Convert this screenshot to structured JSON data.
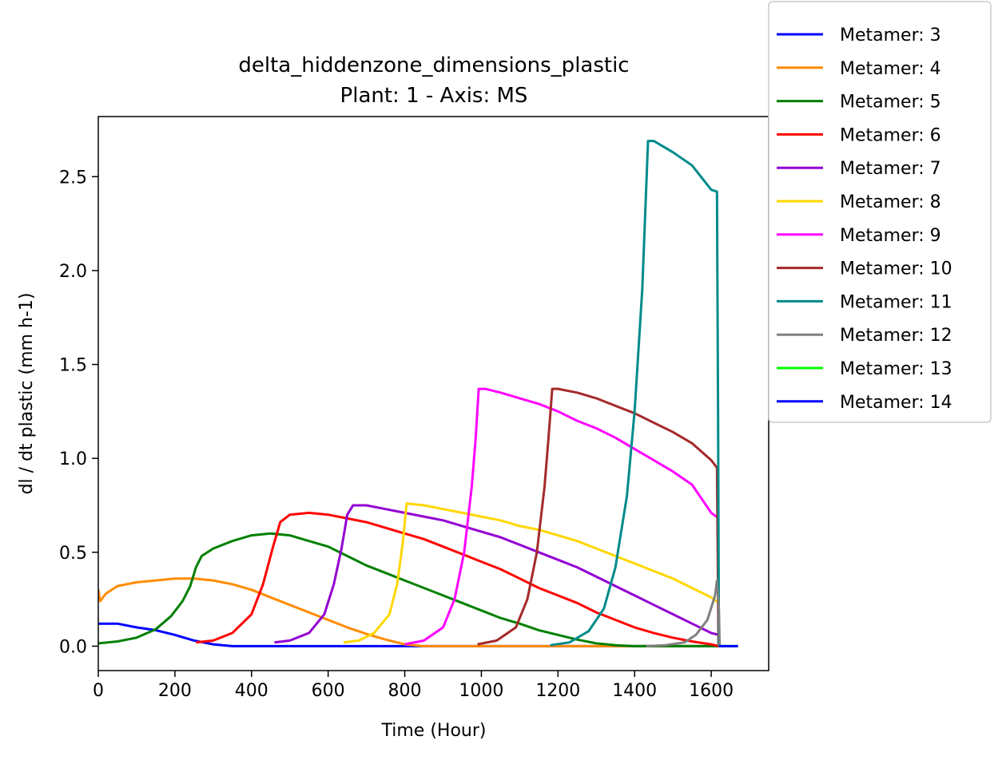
{
  "chart_data": {
    "type": "line",
    "title": "delta_hiddenzone_dimensions_plastic",
    "subtitle": "Plant: 1 - Axis: MS",
    "xlabel": "Time (Hour)",
    "ylabel": "dl / dt plastic (mm h-1)",
    "xlim": [
      0,
      1750
    ],
    "ylim": [
      -0.13,
      2.82
    ],
    "xticks": [
      0,
      200,
      400,
      600,
      800,
      1000,
      1200,
      1400,
      1600
    ],
    "xtick_labels": [
      "0",
      "200",
      "400",
      "600",
      "800",
      "1000",
      "1200",
      "1400",
      "1600"
    ],
    "yticks": [
      0.0,
      0.5,
      1.0,
      1.5,
      2.0,
      2.5
    ],
    "ytick_labels": [
      "0.0",
      "0.5",
      "1.0",
      "1.5",
      "2.0",
      "2.5"
    ],
    "grid": false,
    "legend_position": "outside-top-right",
    "series": [
      {
        "name": "Metamer: 3",
        "color": "#0000ff",
        "points": [
          [
            0,
            0.12
          ],
          [
            50,
            0.12
          ],
          [
            100,
            0.1
          ],
          [
            150,
            0.085
          ],
          [
            200,
            0.06
          ],
          [
            250,
            0.03
          ],
          [
            300,
            0.01
          ],
          [
            350,
            0.0
          ],
          [
            1620,
            0.0
          ]
        ]
      },
      {
        "name": "Metamer: 4",
        "color": "#ff8c00",
        "points": [
          [
            0,
            0.3
          ],
          [
            5,
            0.24
          ],
          [
            20,
            0.28
          ],
          [
            50,
            0.32
          ],
          [
            100,
            0.34
          ],
          [
            150,
            0.35
          ],
          [
            200,
            0.36
          ],
          [
            250,
            0.36
          ],
          [
            300,
            0.35
          ],
          [
            350,
            0.33
          ],
          [
            400,
            0.3
          ],
          [
            450,
            0.26
          ],
          [
            500,
            0.22
          ],
          [
            550,
            0.18
          ],
          [
            600,
            0.14
          ],
          [
            650,
            0.1
          ],
          [
            700,
            0.065
          ],
          [
            750,
            0.035
          ],
          [
            800,
            0.01
          ],
          [
            850,
            0.0
          ],
          [
            1620,
            0.0
          ]
        ]
      },
      {
        "name": "Metamer: 5",
        "color": "#008000",
        "points": [
          [
            0,
            0.015
          ],
          [
            50,
            0.025
          ],
          [
            100,
            0.045
          ],
          [
            150,
            0.09
          ],
          [
            190,
            0.16
          ],
          [
            220,
            0.24
          ],
          [
            240,
            0.32
          ],
          [
            255,
            0.42
          ],
          [
            270,
            0.48
          ],
          [
            300,
            0.52
          ],
          [
            350,
            0.56
          ],
          [
            400,
            0.59
          ],
          [
            450,
            0.6
          ],
          [
            500,
            0.59
          ],
          [
            550,
            0.56
          ],
          [
            600,
            0.53
          ],
          [
            650,
            0.48
          ],
          [
            700,
            0.43
          ],
          [
            750,
            0.39
          ],
          [
            800,
            0.35
          ],
          [
            850,
            0.31
          ],
          [
            900,
            0.27
          ],
          [
            950,
            0.23
          ],
          [
            1000,
            0.19
          ],
          [
            1050,
            0.15
          ],
          [
            1100,
            0.12
          ],
          [
            1150,
            0.085
          ],
          [
            1200,
            0.06
          ],
          [
            1250,
            0.035
          ],
          [
            1300,
            0.015
          ],
          [
            1350,
            0.005
          ],
          [
            1400,
            0.0
          ],
          [
            1620,
            0.0
          ]
        ]
      },
      {
        "name": "Metamer: 6",
        "color": "#ff0000",
        "points": [
          [
            255,
            0.02
          ],
          [
            300,
            0.03
          ],
          [
            350,
            0.07
          ],
          [
            400,
            0.17
          ],
          [
            430,
            0.33
          ],
          [
            455,
            0.52
          ],
          [
            475,
            0.66
          ],
          [
            500,
            0.7
          ],
          [
            550,
            0.71
          ],
          [
            600,
            0.7
          ],
          [
            650,
            0.68
          ],
          [
            700,
            0.66
          ],
          [
            750,
            0.63
          ],
          [
            800,
            0.6
          ],
          [
            850,
            0.57
          ],
          [
            900,
            0.53
          ],
          [
            950,
            0.49
          ],
          [
            1000,
            0.45
          ],
          [
            1050,
            0.41
          ],
          [
            1100,
            0.36
          ],
          [
            1150,
            0.31
          ],
          [
            1200,
            0.27
          ],
          [
            1250,
            0.23
          ],
          [
            1300,
            0.18
          ],
          [
            1350,
            0.14
          ],
          [
            1400,
            0.1
          ],
          [
            1450,
            0.07
          ],
          [
            1500,
            0.045
          ],
          [
            1550,
            0.025
          ],
          [
            1600,
            0.01
          ],
          [
            1620,
            0.0
          ]
        ]
      },
      {
        "name": "Metamer: 7",
        "color": "#9400d3",
        "points": [
          [
            460,
            0.02
          ],
          [
            500,
            0.03
          ],
          [
            550,
            0.07
          ],
          [
            590,
            0.17
          ],
          [
            615,
            0.33
          ],
          [
            635,
            0.52
          ],
          [
            650,
            0.7
          ],
          [
            665,
            0.75
          ],
          [
            700,
            0.75
          ],
          [
            750,
            0.73
          ],
          [
            800,
            0.71
          ],
          [
            850,
            0.69
          ],
          [
            900,
            0.67
          ],
          [
            950,
            0.64
          ],
          [
            1000,
            0.61
          ],
          [
            1050,
            0.58
          ],
          [
            1100,
            0.54
          ],
          [
            1150,
            0.5
          ],
          [
            1200,
            0.46
          ],
          [
            1250,
            0.42
          ],
          [
            1300,
            0.37
          ],
          [
            1350,
            0.32
          ],
          [
            1400,
            0.27
          ],
          [
            1450,
            0.22
          ],
          [
            1500,
            0.17
          ],
          [
            1550,
            0.12
          ],
          [
            1600,
            0.07
          ],
          [
            1620,
            0.06
          ]
        ]
      },
      {
        "name": "Metamer: 8",
        "color": "#ffd700",
        "points": [
          [
            640,
            0.02
          ],
          [
            680,
            0.03
          ],
          [
            720,
            0.07
          ],
          [
            760,
            0.17
          ],
          [
            780,
            0.33
          ],
          [
            795,
            0.55
          ],
          [
            805,
            0.76
          ],
          [
            850,
            0.75
          ],
          [
            900,
            0.73
          ],
          [
            950,
            0.71
          ],
          [
            1000,
            0.69
          ],
          [
            1050,
            0.67
          ],
          [
            1100,
            0.64
          ],
          [
            1150,
            0.62
          ],
          [
            1200,
            0.59
          ],
          [
            1250,
            0.56
          ],
          [
            1300,
            0.52
          ],
          [
            1350,
            0.48
          ],
          [
            1400,
            0.44
          ],
          [
            1450,
            0.4
          ],
          [
            1500,
            0.36
          ],
          [
            1550,
            0.31
          ],
          [
            1600,
            0.26
          ],
          [
            1620,
            0.23
          ]
        ]
      },
      {
        "name": "Metamer: 9",
        "color": "#ff00ff",
        "points": [
          [
            800,
            0.01
          ],
          [
            850,
            0.03
          ],
          [
            900,
            0.1
          ],
          [
            930,
            0.25
          ],
          [
            955,
            0.5
          ],
          [
            975,
            0.85
          ],
          [
            985,
            1.1
          ],
          [
            993,
            1.37
          ],
          [
            1010,
            1.37
          ],
          [
            1050,
            1.35
          ],
          [
            1100,
            1.32
          ],
          [
            1150,
            1.29
          ],
          [
            1200,
            1.25
          ],
          [
            1250,
            1.2
          ],
          [
            1300,
            1.16
          ],
          [
            1350,
            1.11
          ],
          [
            1400,
            1.05
          ],
          [
            1450,
            0.99
          ],
          [
            1500,
            0.93
          ],
          [
            1550,
            0.86
          ],
          [
            1600,
            0.71
          ],
          [
            1620,
            0.68
          ]
        ]
      },
      {
        "name": "Metamer: 10",
        "color": "#a52a2a",
        "points": [
          [
            990,
            0.01
          ],
          [
            1040,
            0.03
          ],
          [
            1090,
            0.1
          ],
          [
            1120,
            0.25
          ],
          [
            1145,
            0.5
          ],
          [
            1165,
            0.85
          ],
          [
            1175,
            1.1
          ],
          [
            1185,
            1.37
          ],
          [
            1200,
            1.37
          ],
          [
            1250,
            1.35
          ],
          [
            1300,
            1.32
          ],
          [
            1350,
            1.28
          ],
          [
            1400,
            1.24
          ],
          [
            1450,
            1.19
          ],
          [
            1500,
            1.14
          ],
          [
            1550,
            1.08
          ],
          [
            1600,
            0.99
          ],
          [
            1615,
            0.95
          ],
          [
            1617,
            0.5
          ],
          [
            1619,
            0.0
          ]
        ]
      },
      {
        "name": "Metamer: 11",
        "color": "#008b8b",
        "points": [
          [
            1180,
            0.005
          ],
          [
            1230,
            0.02
          ],
          [
            1280,
            0.08
          ],
          [
            1320,
            0.2
          ],
          [
            1350,
            0.42
          ],
          [
            1380,
            0.8
          ],
          [
            1400,
            1.25
          ],
          [
            1420,
            1.9
          ],
          [
            1435,
            2.69
          ],
          [
            1450,
            2.69
          ],
          [
            1500,
            2.63
          ],
          [
            1550,
            2.56
          ],
          [
            1600,
            2.43
          ],
          [
            1615,
            2.42
          ],
          [
            1618,
            1.2
          ],
          [
            1620,
            0.0
          ]
        ]
      },
      {
        "name": "Metamer: 12",
        "color": "#808080",
        "points": [
          [
            1430,
            0.0
          ],
          [
            1480,
            0.005
          ],
          [
            1530,
            0.02
          ],
          [
            1560,
            0.06
          ],
          [
            1590,
            0.14
          ],
          [
            1610,
            0.27
          ],
          [
            1615,
            0.35
          ],
          [
            1620,
            0.2
          ],
          [
            1622,
            0.0
          ],
          [
            1670,
            0.0
          ]
        ]
      },
      {
        "name": "Metamer: 13",
        "color": "#00ff00",
        "points": [
          [
            1620,
            0.0
          ],
          [
            1670,
            0.0
          ]
        ]
      },
      {
        "name": "Metamer: 14",
        "color": "#0000ff",
        "points": [
          [
            1620,
            0.0
          ],
          [
            1670,
            0.0
          ]
        ]
      }
    ]
  }
}
